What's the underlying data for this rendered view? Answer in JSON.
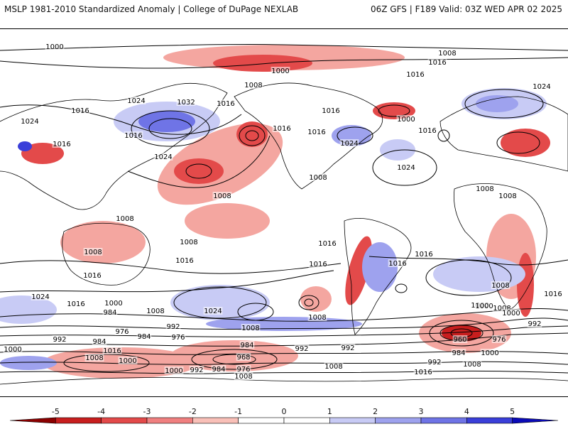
{
  "header": {
    "title": "MSLP 1981-2010 Standardized Anomaly | College of DuPage NEXLAB",
    "valid": "06Z GFS | F189 Valid: 03Z WED APR 02 2025"
  },
  "colorbar": {
    "ticks": [
      "-5",
      "-4",
      "-3",
      "-2",
      "-1",
      "0",
      "1",
      "2",
      "3",
      "4",
      "5"
    ],
    "colors": [
      "#8b0000",
      "#c81e1e",
      "#e34a4a",
      "#f08080",
      "#f9c0b8",
      "#ffffff",
      "#ffffff",
      "#c8cbf5",
      "#9ea2ee",
      "#6f74e6",
      "#3a3fd9",
      "#0a0ab8"
    ]
  },
  "isobar_labels": [
    "1000",
    "1008",
    "1000",
    "1016",
    "1008",
    "1016",
    "1024",
    "1016",
    "1024",
    "1032",
    "1016",
    "1024",
    "1016",
    "1016",
    "1016",
    "1016",
    "1000",
    "1016",
    "1024",
    "1024",
    "1008",
    "1008",
    "1008",
    "1016",
    "1024",
    "1008",
    "1008",
    "1008",
    "1008",
    "1008",
    "1016",
    "1016",
    "1016",
    "1016",
    "1016",
    "1016",
    "1016",
    "1024",
    "1016",
    "1000",
    "1008",
    "1024",
    "1008",
    "1008",
    "1000",
    "1008",
    "984",
    "992",
    "984",
    "976",
    "992",
    "976",
    "1008",
    "1000",
    "992",
    "984",
    "992",
    "984",
    "1016",
    "1000",
    "968",
    "992",
    "976",
    "984",
    "1000",
    "1008",
    "992",
    "960",
    "976",
    "984",
    "1000",
    "992",
    "1008",
    "1016",
    "1008",
    "1000",
    "1000"
  ],
  "colors": {
    "neg_strong": "#c81e1e",
    "neg_light": "#f4a6a0",
    "pos_light": "#c8cbf5",
    "pos_strong": "#5a5fe0",
    "contour": "#000000",
    "coast": "#000000"
  }
}
